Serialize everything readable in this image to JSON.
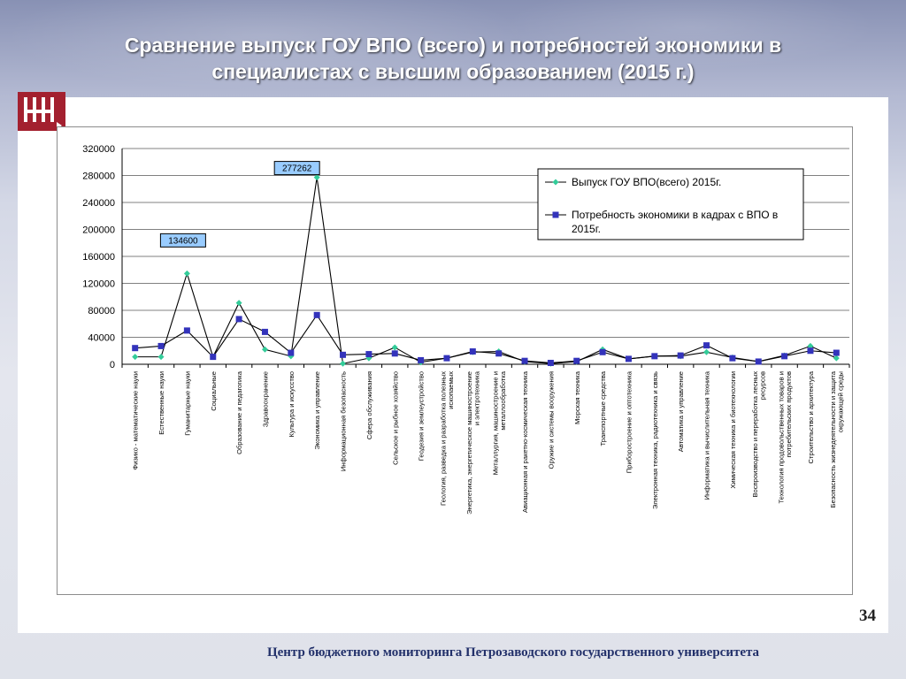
{
  "slide": {
    "title": "Сравнение выпуск ГОУ ВПО (всего) и потребностей экономики в специалистах с высшим образованием  (2015 г.)",
    "page_number": "34",
    "footer": "Центр бюджетного мониторинга Петрозаводского государственного университета"
  },
  "colors": {
    "series1": "#33cc99",
    "series2": "#3333bb",
    "line": "#000000",
    "grid": "#808080",
    "callout_bg": "#99ccff",
    "logo": "#a3202f"
  },
  "chart_data": {
    "type": "line",
    "title": "",
    "xlabel": "",
    "ylabel": "",
    "ylim": [
      0,
      320000
    ],
    "yticks": [
      "320000",
      "280000",
      "240000",
      "200000",
      "160000",
      "120000",
      "80000",
      "40000",
      "0"
    ],
    "grid": true,
    "legend_position": "top-right",
    "categories": [
      "Физико - математические науки",
      "Естественные науки",
      "Гуманитарные науки",
      "Социальные",
      "Образование и педагогика",
      "Здравоохранение",
      "Культура и искусство",
      "Экономика и управление",
      "Информационная безопасность",
      "Сфера обслуживания",
      "Сельское и рыбное хозяйство",
      "Геодезия и землеустройство",
      "Геология, разведка и разработка полезных ископаемых",
      "Энергетика, энергетическое машиностроение и электротехника",
      "Металлургия, машиностроение и металлообработка",
      "Авиационная и ракетно-космическая техника",
      "Оружие и системы вооружения",
      "Морская техника",
      "Транспортные средства",
      "Приборостроение и оптотехника",
      "Электронная техника, радиотехника и связь",
      "Автоматика и управление",
      "Информатика и вычислительная техника",
      "Химическая техника и биотехнологии",
      "Воспроизводство и переработка лесных ресурсов",
      "Технология продовольственных товаров и потребительских продуктов",
      "Строительство и архитектура",
      "Безопасность жизнедеятельности и защита окружающей среды"
    ],
    "series": [
      {
        "name": "Выпуск ГОУ ВПО(всего) 2015г.",
        "marker": "diamond",
        "values": [
          11000,
          11000,
          134600,
          11000,
          91000,
          22000,
          12000,
          277262,
          1000,
          9000,
          25000,
          3000,
          9000,
          18000,
          19000,
          4000,
          1000,
          4000,
          22000,
          8000,
          12000,
          12000,
          18000,
          10000,
          4000,
          13000,
          27000,
          9000
        ]
      },
      {
        "name": "Потребность экономики в кадрах с ВПО в 2015г.",
        "marker": "square",
        "values": [
          24000,
          27000,
          50000,
          11000,
          67000,
          48000,
          17000,
          73000,
          14000,
          15000,
          16000,
          6000,
          9000,
          19000,
          16000,
          5000,
          2000,
          5000,
          18000,
          8000,
          12000,
          13000,
          28000,
          9000,
          4000,
          12000,
          20000,
          17000
        ]
      }
    ],
    "annotations": [
      {
        "text": "134600",
        "category": "Гуманитарные науки"
      },
      {
        "text": "277262",
        "category": "Экономика и управление"
      }
    ]
  }
}
